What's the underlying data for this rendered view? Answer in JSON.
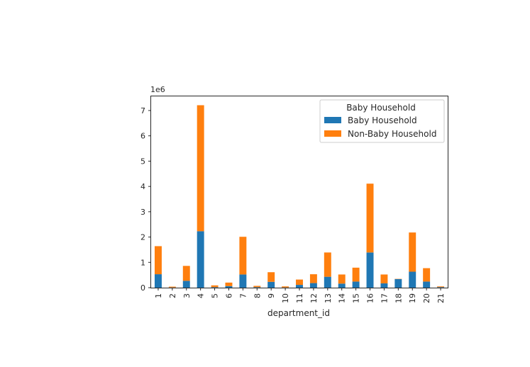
{
  "chart_data": {
    "type": "bar",
    "stacked": true,
    "categories": [
      "1",
      "2",
      "3",
      "4",
      "5",
      "6",
      "7",
      "8",
      "9",
      "10",
      "11",
      "12",
      "13",
      "14",
      "15",
      "16",
      "17",
      "18",
      "19",
      "20",
      "21"
    ],
    "series": [
      {
        "name": "Baby Household",
        "color": "#1f77b4",
        "values": [
          530000,
          8000,
          270000,
          2230000,
          20000,
          60000,
          520000,
          20000,
          230000,
          8000,
          110000,
          180000,
          430000,
          160000,
          240000,
          1390000,
          170000,
          340000,
          630000,
          240000,
          20000
        ]
      },
      {
        "name": "Non-Baby Household",
        "color": "#ff7f0e",
        "values": [
          1110000,
          32000,
          590000,
          4980000,
          70000,
          140000,
          1490000,
          50000,
          380000,
          42000,
          210000,
          350000,
          960000,
          360000,
          550000,
          2720000,
          350000,
          10000,
          1550000,
          530000,
          30000
        ]
      }
    ],
    "xlabel": "department_id",
    "ylabel": "",
    "ylim": [
      0,
      7560000
    ],
    "yticks": [
      0,
      1,
      2,
      3,
      4,
      5,
      6,
      7
    ],
    "y_multiplier_label": "1e6",
    "y_multiplier": 1000000,
    "legend_title": "Baby Household",
    "legend_position": "upper right",
    "grid": false
  }
}
